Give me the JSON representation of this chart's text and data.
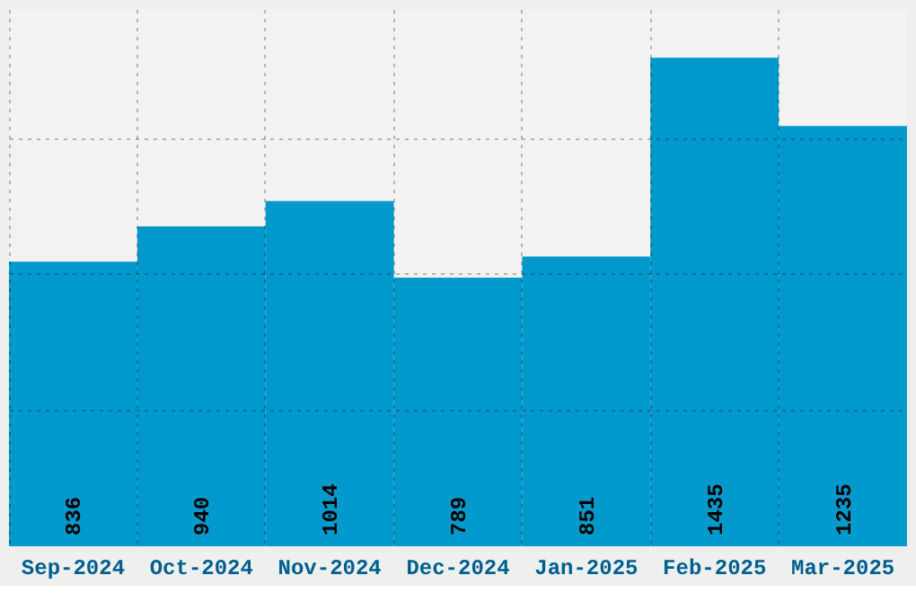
{
  "chart_data": {
    "type": "bar",
    "categories": [
      "Sep-2024",
      "Oct-2024",
      "Nov-2024",
      "Dec-2024",
      "Jan-2025",
      "Feb-2025",
      "Mar-2025"
    ],
    "values": [
      836,
      940,
      1014,
      789,
      851,
      1435,
      1235
    ],
    "color": "#0099cc",
    "ylim": [
      0,
      1578.5
    ],
    "yticks": [
      {
        "value": 400,
        "label": null
      },
      {
        "value": 800,
        "label": null
      },
      {
        "value": 1200,
        "label": null
      }
    ],
    "grid": true,
    "data_labels": true,
    "tick_labels": "x"
  }
}
